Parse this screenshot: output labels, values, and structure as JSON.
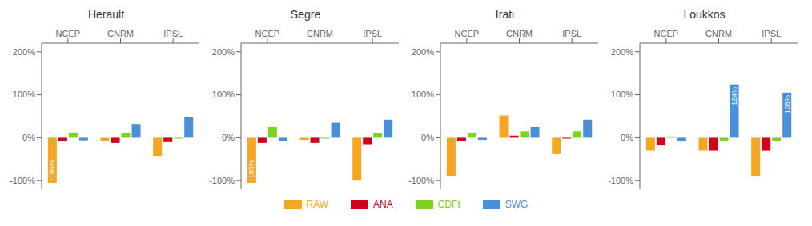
{
  "chart_data": [
    {
      "type": "bar",
      "title": "Herault",
      "categories": [
        "NCEP",
        "CNRM",
        "IPSL"
      ],
      "series": [
        {
          "name": "RAW",
          "color": "#F5A623",
          "values": [
            -105,
            -8,
            -42
          ],
          "value_labels": [
            "-105%",
            null,
            null
          ]
        },
        {
          "name": "ANA",
          "color": "#D0021B",
          "values": [
            -8,
            -12,
            -10
          ]
        },
        {
          "name": "CDFt",
          "color": "#7ED321",
          "values": [
            12,
            12,
            -2
          ]
        },
        {
          "name": "SWG",
          "color": "#4A90D9",
          "values": [
            -6,
            32,
            48
          ]
        }
      ],
      "ylim": [
        -120,
        220
      ],
      "yticks": [
        {
          "value": -100,
          "label": "-100%"
        },
        {
          "value": 0,
          "label": "0%"
        },
        {
          "value": 100,
          "label": "100%"
        },
        {
          "value": 200,
          "label": "200%"
        }
      ]
    },
    {
      "type": "bar",
      "title": "Segre",
      "categories": [
        "NCEP",
        "CNRM",
        "IPSL"
      ],
      "series": [
        {
          "name": "RAW",
          "color": "#F5A623",
          "values": [
            -105,
            -5,
            -100
          ],
          "value_labels": [
            "-105%",
            null,
            null
          ]
        },
        {
          "name": "ANA",
          "color": "#D0021B",
          "values": [
            -12,
            -12,
            -15
          ]
        },
        {
          "name": "CDFt",
          "color": "#7ED321",
          "values": [
            25,
            -2,
            10
          ]
        },
        {
          "name": "SWG",
          "color": "#4A90D9",
          "values": [
            -8,
            35,
            42
          ]
        }
      ],
      "ylim": [
        -120,
        220
      ],
      "yticks": [
        {
          "value": -100,
          "label": "-100%"
        },
        {
          "value": 0,
          "label": "0%"
        },
        {
          "value": 100,
          "label": "100%"
        },
        {
          "value": 200,
          "label": "200%"
        }
      ]
    },
    {
      "type": "bar",
      "title": "Irati",
      "categories": [
        "NCEP",
        "CNRM",
        "IPSL"
      ],
      "series": [
        {
          "name": "RAW",
          "color": "#F5A623",
          "values": [
            -90,
            52,
            -38
          ]
        },
        {
          "name": "ANA",
          "color": "#D0021B",
          "values": [
            -8,
            5,
            -2
          ]
        },
        {
          "name": "CDFt",
          "color": "#7ED321",
          "values": [
            12,
            15,
            15
          ]
        },
        {
          "name": "SWG",
          "color": "#4A90D9",
          "values": [
            -5,
            25,
            42
          ]
        }
      ],
      "ylim": [
        -120,
        220
      ],
      "yticks": [
        {
          "value": -100,
          "label": "-100%"
        },
        {
          "value": 0,
          "label": "0%"
        },
        {
          "value": 100,
          "label": "100%"
        },
        {
          "value": 200,
          "label": "200%"
        }
      ]
    },
    {
      "type": "bar",
      "title": "Loukkos",
      "categories": [
        "NCEP",
        "CNRM",
        "IPSL"
      ],
      "series": [
        {
          "name": "RAW",
          "color": "#F5A623",
          "values": [
            -30,
            -30,
            -90
          ]
        },
        {
          "name": "ANA",
          "color": "#D0021B",
          "values": [
            -18,
            -30,
            -30
          ]
        },
        {
          "name": "CDFt",
          "color": "#7ED321",
          "values": [
            3,
            -8,
            -8
          ]
        },
        {
          "name": "SWG",
          "color": "#4A90D9",
          "values": [
            -8,
            124,
            105
          ],
          "value_labels": [
            null,
            "124%",
            "105%"
          ]
        }
      ],
      "ylim": [
        -120,
        220
      ],
      "yticks": [
        {
          "value": -100,
          "label": "-100%"
        },
        {
          "value": 0,
          "label": "0%"
        },
        {
          "value": 100,
          "label": "100%"
        },
        {
          "value": 200,
          "label": "200%"
        }
      ]
    }
  ]
}
